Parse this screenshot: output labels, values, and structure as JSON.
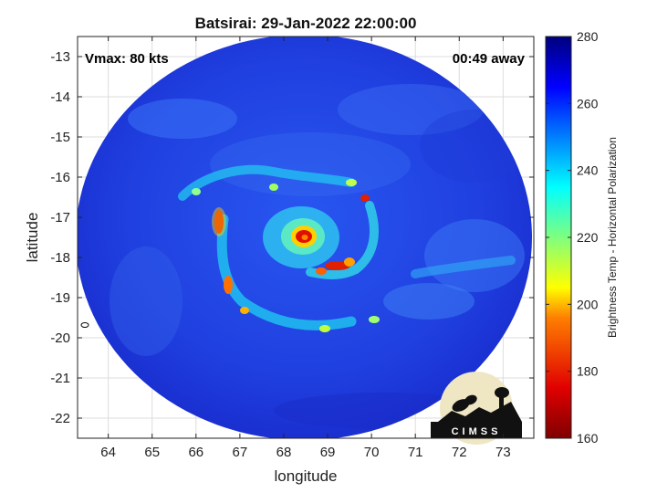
{
  "chart_data": {
    "type": "heatmap",
    "title": "Batsirai: 29-Jan-2022 22:00:00",
    "xlabel": "longitude",
    "ylabel": "latitude",
    "xlim": [
      63.3,
      73.7
    ],
    "ylim": [
      -22.5,
      -12.5
    ],
    "xticks": [
      64,
      65,
      66,
      67,
      68,
      69,
      70,
      71,
      72,
      73
    ],
    "yticks": [
      -13,
      -14,
      -15,
      -16,
      -17,
      -18,
      -19,
      -20,
      -21,
      -22
    ],
    "grid": true,
    "annotation_left": "Vmax: 80 kts",
    "annotation_right": "00:49 away",
    "storm_center": {
      "lon": 68.3,
      "lat": -17.5
    },
    "colorbar": {
      "label": "Brightness Temp - Horizontal Polarization",
      "range": [
        160,
        280
      ],
      "ticks": [
        160,
        180,
        200,
        220,
        240,
        260,
        280
      ],
      "colormap": "jet"
    },
    "logo_text": "CIMSS",
    "colors": {
      "background_cold": "#1e35d8",
      "eyewall_hot": "#d00000",
      "frame": "#000000"
    }
  }
}
